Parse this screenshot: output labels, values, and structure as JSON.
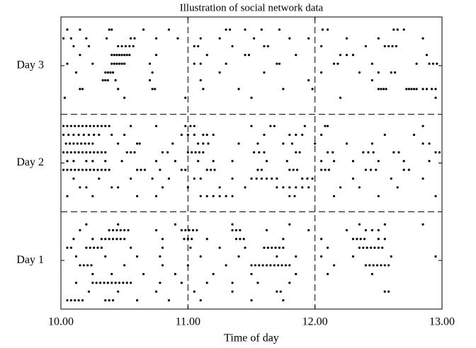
{
  "chart_data": {
    "type": "scatter",
    "title": "Illustration of social network data",
    "x_label": "Time of day",
    "xlim": [
      10,
      13
    ],
    "xticks": [
      {
        "value": 10,
        "label": "10.00"
      },
      {
        "value": 11,
        "label": "11.00"
      },
      {
        "value": 12,
        "label": "12.00"
      },
      {
        "value": 13,
        "label": "13.00"
      }
    ],
    "ylim": [
      0,
      3
    ],
    "yticks": [
      {
        "value": 0.5,
        "label": "Day 1"
      },
      {
        "value": 1.5,
        "label": "Day 2"
      },
      {
        "value": 2.5,
        "label": "Day 3"
      }
    ],
    "dividers": {
      "x": [
        11,
        12
      ],
      "y": [
        1,
        2
      ]
    },
    "color": "#000000",
    "series": [
      {
        "y": 2.87,
        "x": [
          10.05,
          10.15,
          10.38,
          10.4,
          10.65,
          10.85,
          11.3,
          11.33,
          11.45,
          11.58,
          11.72,
          12.06,
          12.1,
          12.62,
          12.65,
          12.7
        ]
      },
      {
        "y": 2.78,
        "x": [
          10.02,
          10.08,
          10.2,
          10.36,
          10.55,
          10.58,
          10.75,
          10.92,
          11.1,
          11.25,
          11.52,
          11.8,
          11.95,
          12.25,
          12.5,
          12.85
        ]
      },
      {
        "y": 2.7,
        "x": [
          10.1,
          10.22,
          10.45,
          10.48,
          10.51,
          10.54,
          10.57,
          11.05,
          11.08,
          11.35,
          11.6,
          11.63,
          12.05,
          12.4,
          12.55,
          12.58,
          12.61,
          12.64
        ]
      },
      {
        "y": 2.61,
        "x": [
          10.15,
          10.4,
          10.42,
          10.44,
          10.46,
          10.48,
          10.5,
          10.52,
          10.54,
          10.75,
          11.15,
          11.45,
          11.48,
          11.85,
          12.2,
          12.25,
          12.3,
          12.88
        ]
      },
      {
        "y": 2.52,
        "x": [
          10.05,
          10.25,
          10.4,
          10.42,
          10.44,
          10.46,
          10.48,
          10.5,
          10.7,
          11.05,
          11.1,
          11.3,
          11.7,
          11.72,
          12.15,
          12.18,
          12.45,
          12.8,
          12.9,
          12.93,
          12.96
        ]
      },
      {
        "y": 2.43,
        "x": [
          10.12,
          10.35,
          10.37,
          10.39,
          10.41,
          10.72,
          11.25,
          11.6,
          12.05,
          12.35,
          12.5,
          12.6,
          12.63
        ]
      },
      {
        "y": 2.35,
        "x": [
          10.33,
          10.35,
          10.37,
          10.43,
          10.7,
          11.1,
          11.95,
          12.45
        ]
      },
      {
        "y": 2.26,
        "x": [
          10.15,
          10.17,
          10.45,
          10.72,
          10.74,
          11.12,
          11.4,
          11.75,
          11.98,
          12.5,
          12.52,
          12.54,
          12.56,
          12.72,
          12.74,
          12.76,
          12.78,
          12.8,
          12.85,
          12.88,
          12.92,
          12.95
        ]
      },
      {
        "y": 2.17,
        "x": [
          10.03,
          10.5,
          10.98,
          11.5,
          12.2,
          12.95
        ]
      },
      {
        "y": 1.88,
        "x": [
          10.02,
          10.05,
          10.08,
          10.11,
          10.14,
          10.17,
          10.2,
          10.23,
          10.26,
          10.29,
          10.32,
          10.35,
          10.38,
          10.55,
          10.75,
          10.98,
          11.02,
          11.05,
          11.5,
          11.65,
          11.68,
          11.92,
          12.08,
          12.1,
          12.85
        ]
      },
      {
        "y": 1.79,
        "x": [
          10.02,
          10.06,
          10.1,
          10.14,
          10.18,
          10.22,
          10.26,
          10.3,
          10.4,
          10.5,
          10.95,
          11.0,
          11.05,
          11.12,
          11.15,
          11.2,
          11.6,
          11.8,
          11.85,
          11.9,
          12.05,
          12.55,
          12.78
        ]
      },
      {
        "y": 1.7,
        "x": [
          10.04,
          10.07,
          10.1,
          10.13,
          10.16,
          10.19,
          10.22,
          10.25,
          10.45,
          10.6,
          10.62,
          10.88,
          11.08,
          11.12,
          11.16,
          11.4,
          11.55,
          11.75,
          11.82,
          12.0,
          12.25,
          12.45,
          12.85,
          12.9
        ]
      },
      {
        "y": 1.61,
        "x": [
          10.02,
          10.05,
          10.08,
          10.11,
          10.14,
          10.17,
          10.2,
          10.23,
          10.26,
          10.29,
          10.32,
          10.35,
          10.52,
          10.55,
          10.58,
          10.8,
          10.84,
          11.0,
          11.03,
          11.06,
          11.09,
          11.12,
          11.52,
          11.56,
          11.6,
          11.85,
          11.88,
          12.1,
          12.14,
          12.38,
          12.42,
          12.46,
          12.62,
          12.66,
          12.95,
          12.98
        ]
      },
      {
        "y": 1.52,
        "x": [
          10.05,
          10.1,
          10.2,
          10.25,
          10.35,
          10.48,
          10.75,
          10.9,
          11.08,
          11.2,
          11.35,
          11.62,
          11.78,
          12.05,
          12.15,
          12.3,
          12.5,
          12.7,
          12.9
        ]
      },
      {
        "y": 1.43,
        "x": [
          10.02,
          10.05,
          10.08,
          10.11,
          10.14,
          10.17,
          10.2,
          10.23,
          10.26,
          10.29,
          10.32,
          10.35,
          10.38,
          10.6,
          10.63,
          10.66,
          10.78,
          10.95,
          10.98,
          11.15,
          11.18,
          11.21,
          11.55,
          11.58,
          11.8,
          11.83,
          11.86,
          12.05,
          12.08,
          12.11,
          12.4,
          12.44,
          12.48,
          12.7,
          12.74
        ]
      },
      {
        "y": 1.34,
        "x": [
          10.1,
          10.3,
          10.55,
          10.72,
          10.85,
          11.05,
          11.1,
          11.35,
          11.5,
          11.54,
          11.58,
          11.62,
          11.66,
          11.7,
          11.9,
          11.94,
          11.98,
          12.3,
          12.6,
          12.85
        ]
      },
      {
        "y": 1.25,
        "x": [
          10.15,
          10.2,
          10.4,
          10.45,
          10.8,
          11.0,
          11.25,
          11.45,
          11.7,
          11.75,
          11.8,
          11.85,
          11.9,
          11.95,
          12.2,
          12.35,
          12.65
        ]
      },
      {
        "y": 1.16,
        "x": [
          10.05,
          10.25,
          10.6,
          10.75,
          11.1,
          11.15,
          11.2,
          11.25,
          11.3,
          11.35,
          11.8,
          11.84,
          12.15,
          12.5,
          12.95
        ]
      },
      {
        "y": 0.87,
        "x": [
          10.2,
          10.45,
          10.9,
          11.35,
          11.8,
          12.35,
          12.55,
          12.85
        ]
      },
      {
        "y": 0.81,
        "x": [
          10.15,
          10.38,
          10.41,
          10.44,
          10.47,
          10.5,
          10.53,
          10.75,
          10.95,
          10.98,
          11.01,
          11.04,
          11.07,
          11.35,
          11.38,
          11.41,
          11.62,
          11.95,
          12.25,
          12.4,
          12.45,
          12.5
        ]
      },
      {
        "y": 0.72,
        "x": [
          10.1,
          10.25,
          10.32,
          10.35,
          10.38,
          10.41,
          10.44,
          10.47,
          10.5,
          10.8,
          10.97,
          11.0,
          11.03,
          11.15,
          11.38,
          11.41,
          11.44,
          11.75,
          12.05,
          12.3,
          12.33,
          12.36,
          12.39,
          12.5,
          12.55
        ]
      },
      {
        "y": 0.63,
        "x": [
          10.05,
          10.08,
          10.2,
          10.23,
          10.26,
          10.29,
          10.32,
          10.55,
          10.8,
          11.02,
          11.25,
          11.45,
          11.6,
          11.63,
          11.66,
          11.69,
          11.72,
          11.75,
          12.1,
          12.35,
          12.38,
          12.41,
          12.44,
          12.47,
          12.5,
          12.53
        ]
      },
      {
        "y": 0.54,
        "x": [
          10.12,
          10.35,
          10.6,
          10.78,
          11.1,
          11.4,
          11.7,
          11.85,
          12.05,
          12.3,
          12.6,
          12.95
        ]
      },
      {
        "y": 0.45,
        "x": [
          10.15,
          10.18,
          10.21,
          10.24,
          10.5,
          10.8,
          11.0,
          11.3,
          11.5,
          11.53,
          11.56,
          11.59,
          11.62,
          11.65,
          11.68,
          11.71,
          11.74,
          11.77,
          11.8,
          12.15,
          12.4,
          12.43,
          12.46,
          12.49,
          12.52,
          12.55,
          12.58
        ]
      },
      {
        "y": 0.36,
        "x": [
          10.25,
          10.4,
          10.65,
          10.9,
          11.2,
          11.5,
          11.85,
          12.1,
          12.45
        ]
      },
      {
        "y": 0.27,
        "x": [
          10.12,
          10.25,
          10.28,
          10.31,
          10.34,
          10.37,
          10.4,
          10.43,
          10.46,
          10.49,
          10.52,
          10.55,
          10.78,
          10.95,
          11.15,
          11.35,
          11.55,
          11.8
        ]
      },
      {
        "y": 0.18,
        "x": [
          10.22,
          10.45,
          10.75,
          11.05,
          11.35,
          11.7,
          11.73,
          12.55,
          12.58
        ]
      },
      {
        "y": 0.09,
        "x": [
          10.05,
          10.08,
          10.11,
          10.14,
          10.17,
          10.35,
          10.38,
          10.41,
          10.6,
          10.85,
          11.1,
          11.5,
          11.75
        ]
      }
    ]
  }
}
